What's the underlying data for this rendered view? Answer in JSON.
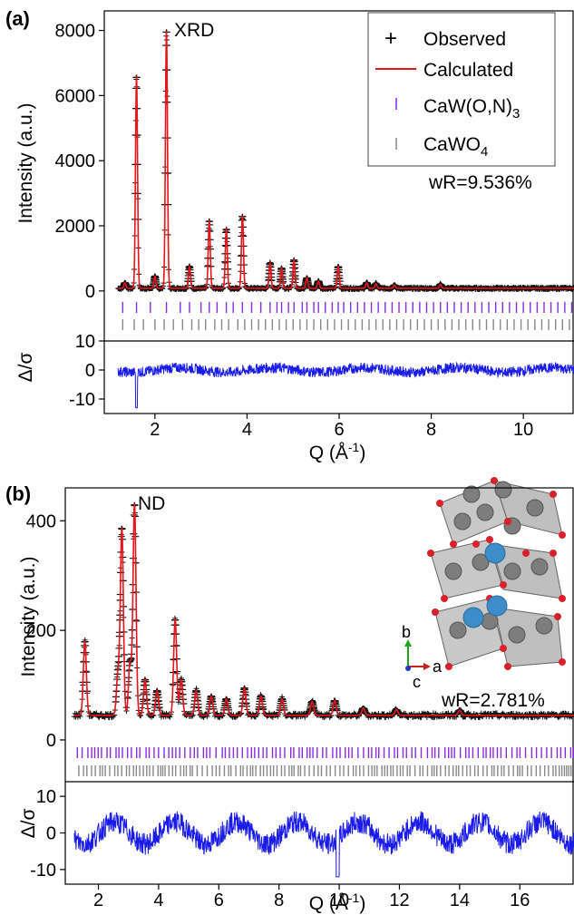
{
  "chart_data": [
    {
      "panel_label": "(a)",
      "type": "line",
      "annotation": "XRD",
      "ylabel": "Intensity (a.u.)",
      "residual_ylabel": "Δ/σ",
      "xlabel_main": "Q (Å",
      "xlabel_sup": "-1",
      "xlabel_close": ")",
      "xlim": [
        0.9,
        11.1
      ],
      "ylim": [
        -200,
        8600
      ],
      "residual_ylim": [
        -15,
        10
      ],
      "x_ticks": [
        2,
        4,
        6,
        8,
        10
      ],
      "y_ticks": [
        0,
        2000,
        4000,
        6000,
        8000
      ],
      "residual_ticks": [
        10,
        0,
        -10
      ],
      "legend": {
        "placement": "top-right",
        "observed": "Observed",
        "calculated": "Calculated",
        "phase1": "CaW(O,N)",
        "phase1_sub": "3",
        "phase2": "CaWO",
        "phase2_sub": "4"
      },
      "fit_stat": "wR=9.536%",
      "background": 80,
      "peaks": [
        {
          "q": 1.35,
          "i": 250
        },
        {
          "q": 1.6,
          "i": 6600
        },
        {
          "q": 2.0,
          "i": 450
        },
        {
          "q": 2.25,
          "i": 8000
        },
        {
          "q": 2.75,
          "i": 750
        },
        {
          "q": 3.18,
          "i": 2150
        },
        {
          "q": 3.55,
          "i": 1900
        },
        {
          "q": 3.9,
          "i": 2300
        },
        {
          "q": 4.5,
          "i": 850
        },
        {
          "q": 4.75,
          "i": 700
        },
        {
          "q": 5.02,
          "i": 950
        },
        {
          "q": 5.3,
          "i": 400
        },
        {
          "q": 5.55,
          "i": 300
        },
        {
          "q": 5.98,
          "i": 750
        },
        {
          "q": 6.6,
          "i": 250
        },
        {
          "q": 6.8,
          "i": 220
        },
        {
          "q": 7.2,
          "i": 180
        },
        {
          "q": 8.2,
          "i": 200
        }
      ],
      "ticks_phase1": [
        1.3,
        1.6,
        1.9,
        2.25,
        2.55,
        2.75,
        3.0,
        3.18,
        3.35,
        3.55,
        3.7,
        3.9,
        4.1,
        4.3,
        4.5,
        4.65,
        4.75,
        4.9,
        5.02,
        5.2,
        5.3,
        5.45,
        5.55,
        5.7,
        5.85,
        5.98,
        6.1,
        6.25,
        6.4,
        6.55,
        6.7,
        6.85,
        7.0,
        7.15,
        7.3,
        7.45,
        7.6,
        7.75,
        7.9,
        8.05,
        8.2,
        8.35,
        8.5,
        8.65,
        8.8,
        8.95,
        9.1,
        9.25,
        9.4,
        9.55,
        9.7,
        9.85,
        10.0,
        10.15,
        10.3,
        10.45,
        10.6,
        10.75,
        10.9,
        11.05
      ],
      "ticks_phase2": [
        1.3,
        1.55,
        1.75,
        2.0,
        2.2,
        2.4,
        2.6,
        2.8,
        2.95,
        3.1,
        3.3,
        3.45,
        3.6,
        3.8,
        3.95,
        4.1,
        4.25,
        4.4,
        4.55,
        4.7,
        4.85,
        5.0,
        5.15,
        5.3,
        5.45,
        5.6,
        5.75,
        5.9,
        6.05,
        6.2,
        6.35,
        6.5,
        6.65,
        6.8,
        6.95,
        7.1,
        7.25,
        7.4,
        7.55,
        7.7,
        7.85,
        8.0,
        8.15,
        8.3,
        8.45,
        8.6,
        8.75,
        8.9,
        9.05,
        9.2,
        9.35,
        9.5,
        9.65,
        9.8,
        9.95,
        10.1,
        10.25,
        10.4,
        10.55,
        10.7,
        10.85,
        11.0
      ]
    },
    {
      "panel_label": "(b)",
      "type": "line",
      "annotation": "ND",
      "ylabel": "Intensity (a.u.)",
      "residual_ylabel": "Δ/σ",
      "xlabel_main": "Q (Å",
      "xlabel_sup": "-1",
      "xlabel_close": ")",
      "xlim": [
        0.9,
        17.8
      ],
      "ylim": [
        -10,
        460
      ],
      "residual_ylim": [
        -14,
        14
      ],
      "x_ticks": [
        2,
        4,
        6,
        8,
        10,
        12,
        14,
        16
      ],
      "y_ticks": [
        0,
        200,
        400
      ],
      "residual_ticks": [
        10,
        0,
        -10
      ],
      "axis_labels_inset": {
        "b": "b",
        "a": "a",
        "c": "c"
      },
      "fit_stat": "wR=2.781%",
      "background": 45,
      "peaks": [
        {
          "q": 1.55,
          "i": 180
        },
        {
          "q": 2.65,
          "i": 120
        },
        {
          "q": 2.78,
          "i": 385
        },
        {
          "q": 3.05,
          "i": 140
        },
        {
          "q": 3.2,
          "i": 430
        },
        {
          "q": 3.55,
          "i": 110
        },
        {
          "q": 3.95,
          "i": 90
        },
        {
          "q": 4.55,
          "i": 220
        },
        {
          "q": 4.75,
          "i": 110
        },
        {
          "q": 5.25,
          "i": 90
        },
        {
          "q": 5.75,
          "i": 80
        },
        {
          "q": 6.25,
          "i": 75
        },
        {
          "q": 6.85,
          "i": 95
        },
        {
          "q": 7.4,
          "i": 80
        },
        {
          "q": 8.1,
          "i": 75
        },
        {
          "q": 9.1,
          "i": 70
        },
        {
          "q": 9.85,
          "i": 72
        },
        {
          "q": 10.8,
          "i": 58
        },
        {
          "q": 11.9,
          "i": 55
        },
        {
          "q": 14.0,
          "i": 54
        }
      ],
      "ticks_phase1_start": 1.3,
      "ticks_phase1_end": 17.8,
      "ticks_phase2_start": 1.35,
      "ticks_phase2_end": 17.8
    }
  ]
}
